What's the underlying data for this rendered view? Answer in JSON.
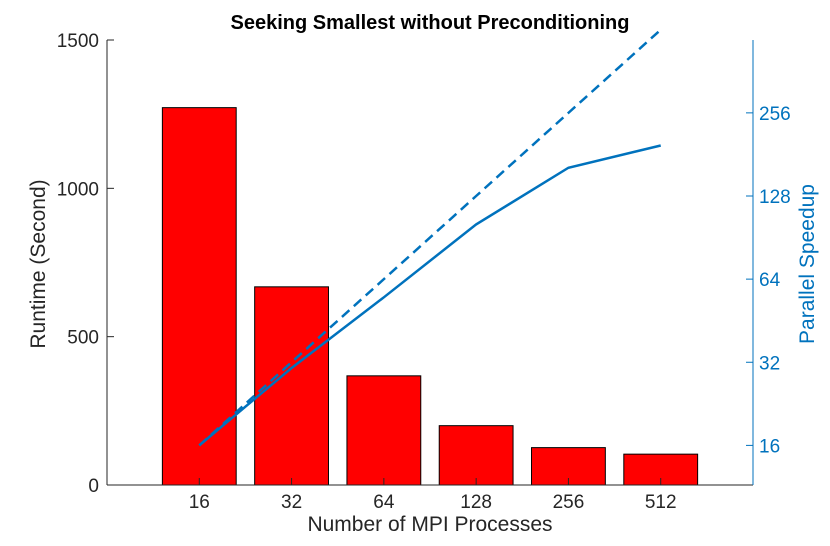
{
  "chart_data": {
    "type": "bar",
    "title": "Seeking Smallest without Preconditioning",
    "xlabel": "Number of MPI Processes",
    "ylabel": "Runtime (Second)",
    "y2label": "Parallel Speedup",
    "categories": [
      "16",
      "32",
      "64",
      "128",
      "256",
      "512"
    ],
    "ylim": [
      0,
      1500
    ],
    "yticks": [
      0,
      500,
      1000,
      1500
    ],
    "y2scale": "log2",
    "y2lim": [
      11.5,
      470
    ],
    "y2ticks": [
      16,
      32,
      64,
      128,
      256
    ],
    "grid": false,
    "series": [
      {
        "kind": "bar",
        "axis": "left",
        "color": "#ff0000",
        "values": [
          1272,
          668,
          368,
          200,
          126,
          104
        ]
      },
      {
        "kind": "line",
        "axis": "right",
        "style": "solid",
        "color": "#0072bd",
        "values": [
          16,
          30.5,
          55,
          101,
          162,
          195
        ]
      },
      {
        "kind": "line",
        "axis": "right",
        "style": "dashed",
        "color": "#0072bd",
        "values": [
          16,
          32,
          64,
          128,
          256,
          512
        ]
      }
    ],
    "colors": {
      "axis": "#262626",
      "right_axis": "#0072bd"
    }
  }
}
